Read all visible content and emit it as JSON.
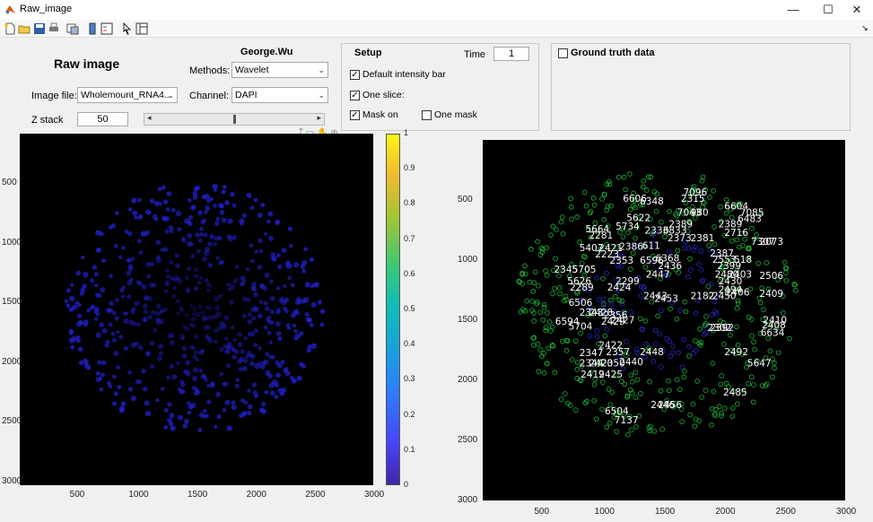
{
  "window": {
    "title": "Raw_image",
    "controls": [
      "—",
      "☐",
      "✕"
    ]
  },
  "header": {
    "title": "Raw image",
    "user": "George.Wu"
  },
  "image_file": {
    "label": "Image file:",
    "value": "Wholemount_RNA4..."
  },
  "methods": {
    "label": "Methods:",
    "value": "Wavelet"
  },
  "channel": {
    "label": "Channel:",
    "value": "DAPI"
  },
  "zstack": {
    "label": "Z stack",
    "value": "50",
    "slider_fraction": 0.49
  },
  "setup": {
    "title": "Setup",
    "time_label": "Time",
    "time_value": "1",
    "default_intensity": {
      "label": "Default intensity bar",
      "checked": true
    },
    "one_slice": {
      "label": "One slice:",
      "checked": true
    },
    "mask_on": {
      "label": "Mask on",
      "checked": true
    },
    "one_mask": {
      "label": "One mask",
      "checked": false
    }
  },
  "ground_truth": {
    "label": "Ground truth data",
    "checked": false
  },
  "left_axes": {
    "xticks": [
      "500",
      "1000",
      "1500",
      "2000",
      "2500",
      "3000"
    ],
    "yticks": [
      "500",
      "1000",
      "1500",
      "2000",
      "2500",
      "3000"
    ]
  },
  "colorbar": {
    "ticks": [
      "0",
      "0.1",
      "0.2",
      "0.3",
      "0.4",
      "0.5",
      "0.6",
      "0.7",
      "0.8",
      "0.9",
      "1"
    ]
  },
  "right_axes": {
    "xticks": [
      "500",
      "1000",
      "1500",
      "2000",
      "2500",
      "3000"
    ],
    "yticks": [
      "500",
      "1000",
      "1500",
      "2000",
      "2500",
      "3000"
    ],
    "cell_labels": [
      {
        "text": "7096",
        "x": 1660,
        "y": 590
      },
      {
        "text": "2315",
        "x": 1640,
        "y": 640
      },
      {
        "text": "6606",
        "x": 1160,
        "y": 640
      },
      {
        "text": "6348",
        "x": 1300,
        "y": 660
      },
      {
        "text": "6604",
        "x": 2000,
        "y": 700
      },
      {
        "text": "5622",
        "x": 1190,
        "y": 790
      },
      {
        "text": "7043",
        "x": 1610,
        "y": 750
      },
      {
        "text": "980",
        "x": 1720,
        "y": 750
      },
      {
        "text": "7085",
        "x": 2130,
        "y": 750
      },
      {
        "text": "6483",
        "x": 2110,
        "y": 800
      },
      {
        "text": "2389",
        "x": 1540,
        "y": 840
      },
      {
        "text": "2389",
        "x": 1950,
        "y": 840
      },
      {
        "text": "5664",
        "x": 850,
        "y": 880
      },
      {
        "text": "5734",
        "x": 1100,
        "y": 860
      },
      {
        "text": "2333",
        "x": 1340,
        "y": 890
      },
      {
        "text": "6833",
        "x": 1490,
        "y": 890
      },
      {
        "text": "2716",
        "x": 2000,
        "y": 910
      },
      {
        "text": "2281",
        "x": 880,
        "y": 930
      },
      {
        "text": "2373",
        "x": 1530,
        "y": 950
      },
      {
        "text": "2381",
        "x": 1720,
        "y": 950
      },
      {
        "text": "7307",
        "x": 2220,
        "y": 980
      },
      {
        "text": "2073",
        "x": 2290,
        "y": 980
      },
      {
        "text": "5407",
        "x": 800,
        "y": 1030
      },
      {
        "text": "2421",
        "x": 960,
        "y": 1030
      },
      {
        "text": "2386",
        "x": 1130,
        "y": 1020
      },
      {
        "text": "611",
        "x": 1320,
        "y": 1010
      },
      {
        "text": "2223",
        "x": 930,
        "y": 1080
      },
      {
        "text": "2387",
        "x": 1880,
        "y": 1070
      },
      {
        "text": "2353",
        "x": 1050,
        "y": 1130
      },
      {
        "text": "6596",
        "x": 1300,
        "y": 1130
      },
      {
        "text": "6368",
        "x": 1430,
        "y": 1110
      },
      {
        "text": "2553",
        "x": 1900,
        "y": 1120
      },
      {
        "text": "518",
        "x": 2080,
        "y": 1120
      },
      {
        "text": "2345",
        "x": 590,
        "y": 1200
      },
      {
        "text": "5705",
        "x": 740,
        "y": 1200
      },
      {
        "text": "2436",
        "x": 1450,
        "y": 1170
      },
      {
        "text": "2399",
        "x": 1940,
        "y": 1170
      },
      {
        "text": "2447",
        "x": 1350,
        "y": 1240
      },
      {
        "text": "2403",
        "x": 2030,
        "y": 1240
      },
      {
        "text": "2480",
        "x": 1920,
        "y": 1240
      },
      {
        "text": "2506",
        "x": 2290,
        "y": 1250
      },
      {
        "text": "5626",
        "x": 700,
        "y": 1290
      },
      {
        "text": "2299",
        "x": 1100,
        "y": 1290
      },
      {
        "text": "2430",
        "x": 1950,
        "y": 1290
      },
      {
        "text": "2289",
        "x": 720,
        "y": 1340
      },
      {
        "text": "2424",
        "x": 1030,
        "y": 1340
      },
      {
        "text": "2406",
        "x": 2010,
        "y": 1380
      },
      {
        "text": "2494",
        "x": 1950,
        "y": 1360
      },
      {
        "text": "2409",
        "x": 2290,
        "y": 1390
      },
      {
        "text": "2443",
        "x": 1330,
        "y": 1410
      },
      {
        "text": "2182",
        "x": 1720,
        "y": 1410
      },
      {
        "text": "2450",
        "x": 1900,
        "y": 1410
      },
      {
        "text": "2453",
        "x": 1420,
        "y": 1430
      },
      {
        "text": "6506",
        "x": 710,
        "y": 1460
      },
      {
        "text": "2343",
        "x": 800,
        "y": 1540
      },
      {
        "text": "2428",
        "x": 880,
        "y": 1540
      },
      {
        "text": "2356",
        "x": 1000,
        "y": 1560
      },
      {
        "text": "6594",
        "x": 600,
        "y": 1610
      },
      {
        "text": "2429",
        "x": 980,
        "y": 1610
      },
      {
        "text": "2427",
        "x": 1060,
        "y": 1600
      },
      {
        "text": "5704",
        "x": 710,
        "y": 1650
      },
      {
        "text": "2410",
        "x": 2320,
        "y": 1600
      },
      {
        "text": "2408",
        "x": 2310,
        "y": 1640
      },
      {
        "text": "2302",
        "x": 1860,
        "y": 1660
      },
      {
        "text": "2392",
        "x": 1880,
        "y": 1660
      },
      {
        "text": "6634",
        "x": 2300,
        "y": 1700
      },
      {
        "text": "2422",
        "x": 960,
        "y": 1800
      },
      {
        "text": "2347",
        "x": 800,
        "y": 1860
      },
      {
        "text": "2357",
        "x": 1020,
        "y": 1850
      },
      {
        "text": "2448",
        "x": 1300,
        "y": 1850
      },
      {
        "text": "2492",
        "x": 2000,
        "y": 1850
      },
      {
        "text": "2344",
        "x": 800,
        "y": 1940
      },
      {
        "text": "2420",
        "x": 880,
        "y": 1940
      },
      {
        "text": "2350",
        "x": 980,
        "y": 1940
      },
      {
        "text": "2440",
        "x": 1130,
        "y": 1930
      },
      {
        "text": "5647",
        "x": 2190,
        "y": 1940
      },
      {
        "text": "2419",
        "x": 810,
        "y": 2030
      },
      {
        "text": "2425",
        "x": 960,
        "y": 2030
      },
      {
        "text": "2485",
        "x": 1990,
        "y": 2170
      },
      {
        "text": "2446",
        "x": 1390,
        "y": 2270
      },
      {
        "text": "2456",
        "x": 1450,
        "y": 2270
      },
      {
        "text": "6504",
        "x": 1010,
        "y": 2320
      },
      {
        "text": "7137",
        "x": 1090,
        "y": 2390
      }
    ]
  },
  "colors": {
    "axes_bg": "#000000",
    "nuclei_blue": "#2020c8",
    "mask_green": "#22c040",
    "label_text": "#ffffff"
  }
}
